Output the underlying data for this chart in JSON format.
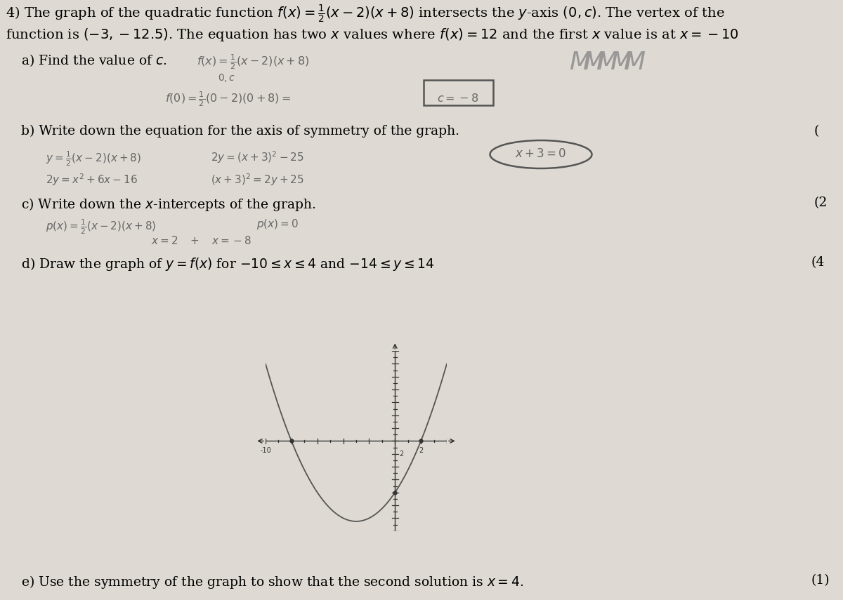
{
  "bg_color": "#dedad3",
  "title_line1": "4) The graph of the quadratic function $f(x) = \\frac{1}{2}(x-2)(x+8)$ intersects the $y$-axis $(0, c)$. The vertex of the",
  "title_line2": "function is $(-3,-12.5)$. The equation has two $x$ values where $f(x) = 12$ and the first $x$ value is at $x = -10$",
  "part_a_label": "a) Find the value of $c$.",
  "part_b_label": "b) Write down the equation for the axis of symmetry of the graph.",
  "part_c_label": "c) Write down the $x$-intercepts of the graph.",
  "part_d_label": "d) Draw the graph of $y = f(x)$ for $-10 \\leq x \\leq 4$ and $-14 \\leq y \\leq 14$",
  "part_e_label": "e) Use the symmetry of the graph to show that the second solution is $x = 4$.",
  "marks_b": "(",
  "marks_c": "(2",
  "marks_d": "(4",
  "marks_e": "(1)",
  "graph_xlim": [
    -10,
    4
  ],
  "graph_ylim": [
    -14,
    14
  ],
  "line_color": "#555555",
  "handwritten_color": "#666666",
  "box_color": "#555555",
  "ellipse_color": "#555555"
}
